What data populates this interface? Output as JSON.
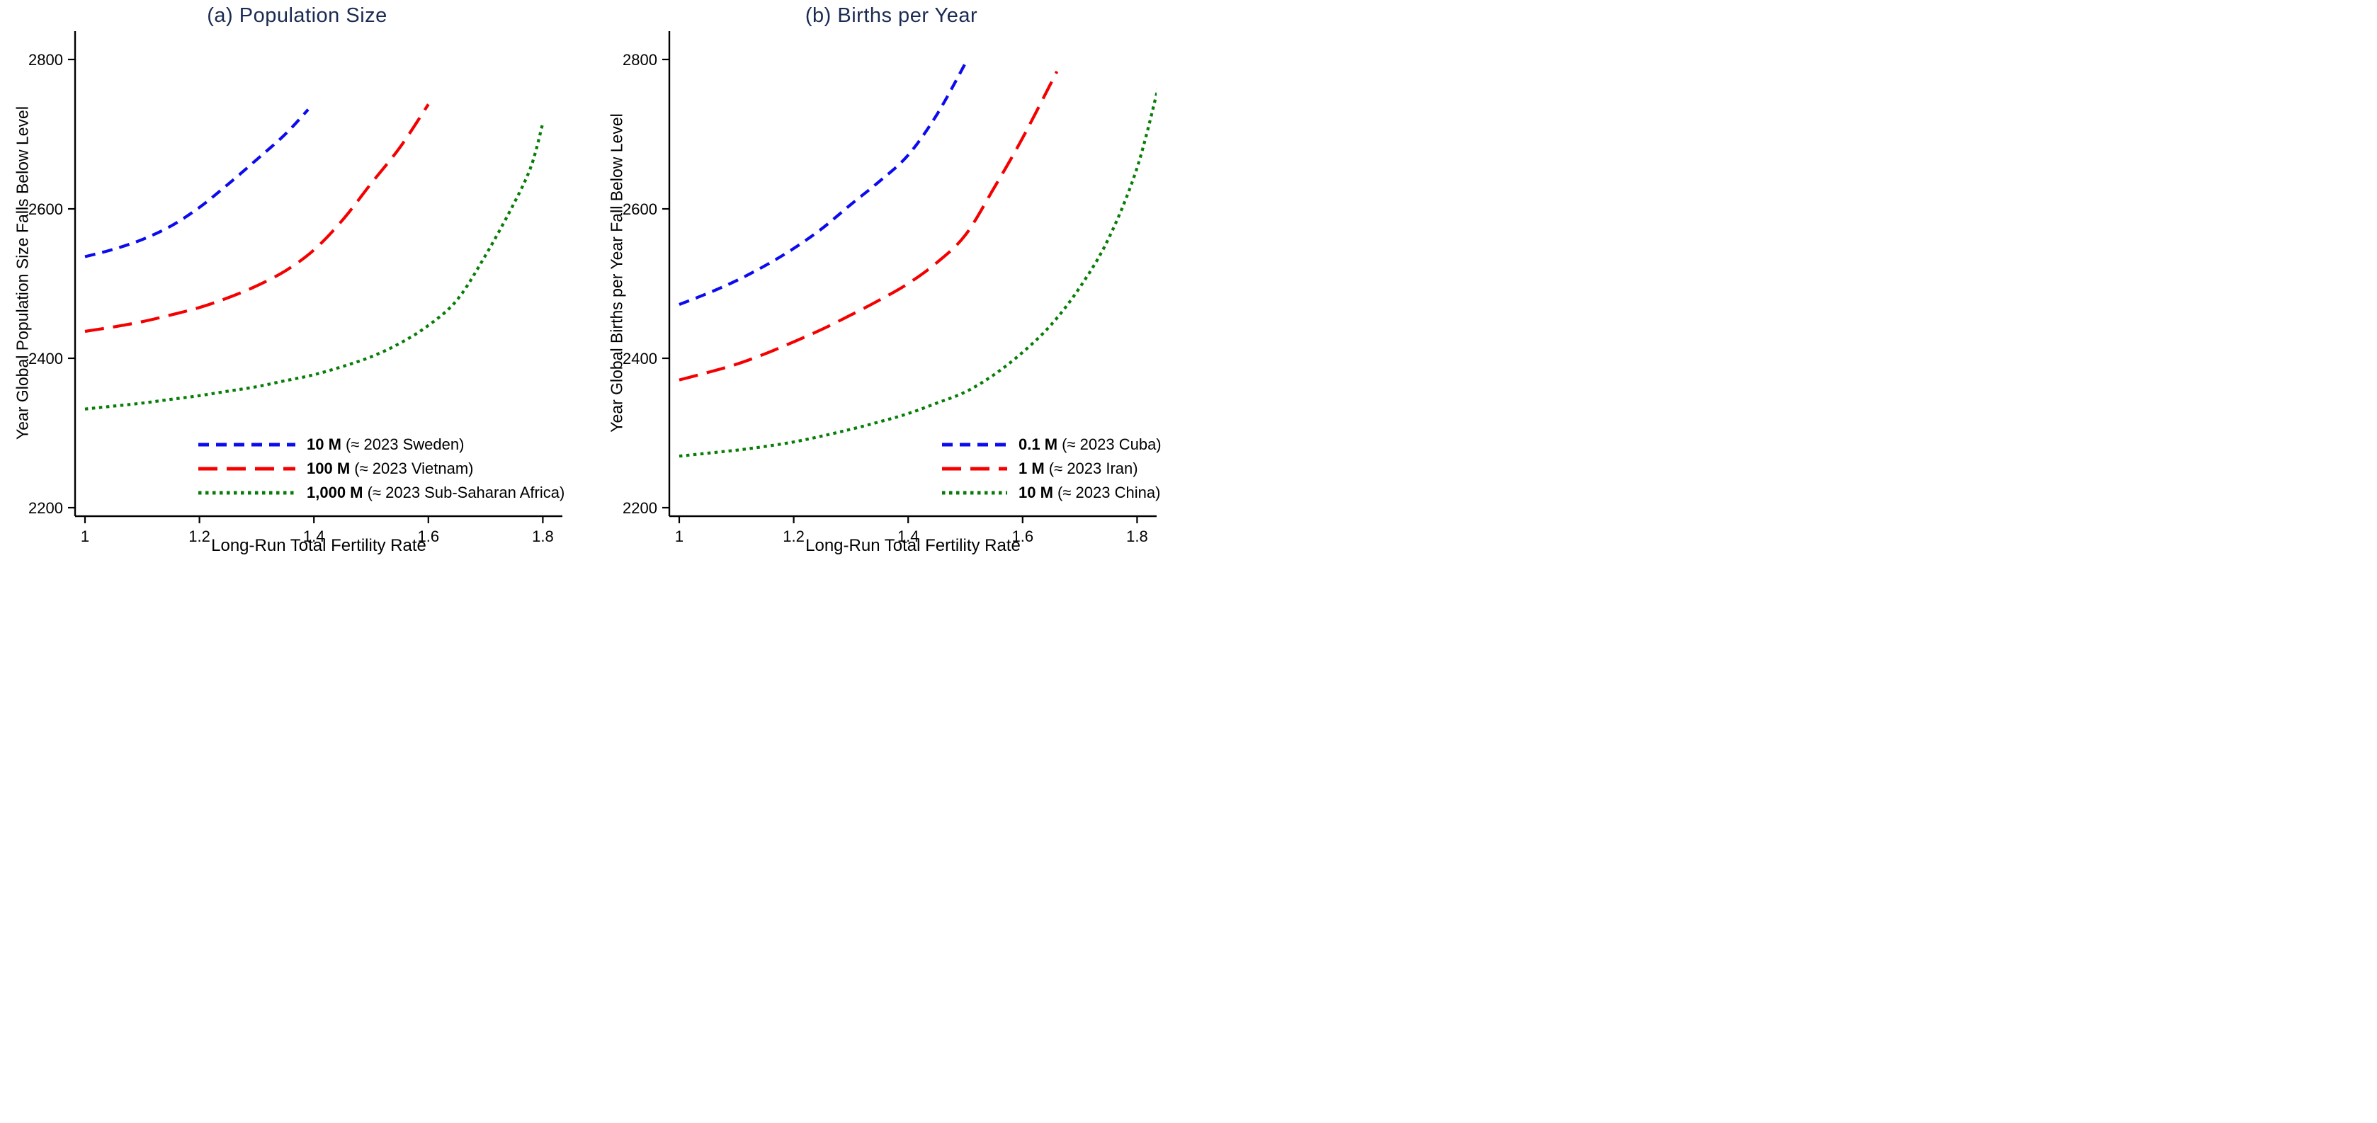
{
  "figure": {
    "background": "#ffffff",
    "title_color": "#1a2b52",
    "axis_color": "#000000"
  },
  "chart_data": [
    {
      "type": "line",
      "title": "(a) Population Size",
      "xlabel": "Long-Run Total Fertility Rate",
      "ylabel": "Year Global Population Size Falls Below Level",
      "xlim": [
        0.982,
        1.835
      ],
      "ylim": [
        2188,
        2838
      ],
      "xticks": [
        "1",
        "1.2",
        "1.4",
        "1.6",
        "1.8"
      ],
      "xtick_values": [
        1,
        1.2,
        1.4,
        1.6,
        1.8
      ],
      "yticks": [
        "2200",
        "2400",
        "2600",
        "2800"
      ],
      "ytick_values": [
        2200,
        2400,
        2600,
        2800
      ],
      "grid": false,
      "legend_position": "inside-lower-right",
      "series": [
        {
          "name": "10 M (≈ 2023 Sweden)",
          "label_bold": "10 M",
          "label_rest": " (≈ 2023 Sweden)",
          "color": "#0b0bee",
          "dash": "medium-dash",
          "x": [
            1.0,
            1.05,
            1.1,
            1.15,
            1.2,
            1.25,
            1.3,
            1.35,
            1.39
          ],
          "y": [
            2536,
            2546,
            2559,
            2577,
            2602,
            2633,
            2666,
            2700,
            2733
          ]
        },
        {
          "name": "100 M (≈ 2023 Vietnam)",
          "label_bold": "100 M",
          "label_rest": " (≈ 2023 Vietnam)",
          "color": "#f40000",
          "dash": "long-dash",
          "x": [
            1.0,
            1.05,
            1.1,
            1.15,
            1.2,
            1.25,
            1.3,
            1.35,
            1.4,
            1.45,
            1.5,
            1.55,
            1.6
          ],
          "y": [
            2436,
            2442,
            2449,
            2458,
            2468,
            2481,
            2497,
            2517,
            2545,
            2585,
            2634,
            2682,
            2740
          ]
        },
        {
          "name": "1,000 M (≈ 2023 Sub-Saharan Africa)",
          "label_bold": "1,000 M",
          "label_rest": " (≈ 2023 Sub-Saharan Africa)",
          "color": "#077d07",
          "dash": "dot",
          "x": [
            1.0,
            1.05,
            1.1,
            1.15,
            1.2,
            1.25,
            1.3,
            1.35,
            1.4,
            1.45,
            1.5,
            1.55,
            1.6,
            1.65,
            1.7,
            1.75,
            1.78,
            1.8
          ],
          "y": [
            2332,
            2336,
            2340,
            2345,
            2350,
            2356,
            2362,
            2370,
            2378,
            2389,
            2402,
            2420,
            2444,
            2478,
            2538,
            2608,
            2658,
            2715
          ]
        }
      ]
    },
    {
      "type": "line",
      "title": "(b) Births per Year",
      "xlabel": "Long-Run Total Fertility Rate",
      "ylabel": "Year Global Births per Year Fall Below Level",
      "xlim": [
        0.982,
        1.86
      ],
      "ylim": [
        2188,
        2838
      ],
      "xticks": [
        "1",
        "1.2",
        "1.4",
        "1.6",
        "1.8"
      ],
      "xtick_values": [
        1,
        1.2,
        1.4,
        1.6,
        1.8
      ],
      "yticks": [
        "2200",
        "2400",
        "2600",
        "2800"
      ],
      "ytick_values": [
        2200,
        2400,
        2600,
        2800
      ],
      "grid": false,
      "legend_position": "inside-lower-right",
      "series": [
        {
          "name": "0.1 M (≈ 2023 Cuba)",
          "label_bold": "0.1 M",
          "label_rest": " (≈ 2023 Cuba)",
          "color": "#0b0bee",
          "dash": "medium-dash",
          "x": [
            1.0,
            1.05,
            1.1,
            1.15,
            1.2,
            1.25,
            1.3,
            1.35,
            1.4,
            1.45,
            1.5
          ],
          "y": [
            2472,
            2487,
            2504,
            2524,
            2547,
            2574,
            2606,
            2637,
            2672,
            2726,
            2795
          ]
        },
        {
          "name": "1 M (≈ 2023 Iran)",
          "label_bold": "1 M",
          "label_rest": " (≈ 2023 Iran)",
          "color": "#f40000",
          "dash": "long-dash",
          "x": [
            1.0,
            1.05,
            1.1,
            1.15,
            1.2,
            1.25,
            1.3,
            1.35,
            1.4,
            1.45,
            1.5,
            1.55,
            1.6,
            1.66
          ],
          "y": [
            2371,
            2381,
            2392,
            2406,
            2422,
            2439,
            2458,
            2478,
            2500,
            2528,
            2565,
            2628,
            2695,
            2784
          ]
        },
        {
          "name": "10 M (≈ 2023 China)",
          "label_bold": "10 M",
          "label_rest": " (≈ 2023 China)",
          "color": "#077d07",
          "dash": "dot",
          "x": [
            1.0,
            1.05,
            1.1,
            1.15,
            1.2,
            1.25,
            1.3,
            1.35,
            1.4,
            1.45,
            1.5,
            1.55,
            1.6,
            1.65,
            1.7,
            1.75,
            1.8,
            1.84
          ],
          "y": [
            2269,
            2273,
            2277,
            2282,
            2288,
            2296,
            2305,
            2315,
            2326,
            2340,
            2355,
            2378,
            2408,
            2445,
            2495,
            2560,
            2655,
            2772
          ]
        }
      ]
    }
  ]
}
